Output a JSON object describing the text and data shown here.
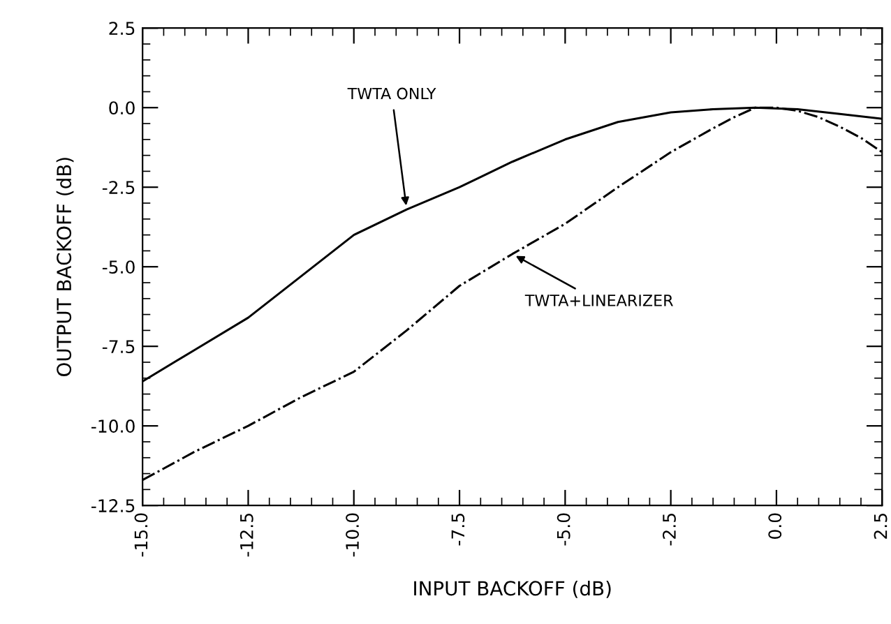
{
  "chart_data": {
    "type": "line",
    "xlabel": "INPUT BACKOFF (dB)",
    "ylabel": "OUTPUT BACKOFF (dB)",
    "xlim": [
      -15,
      2.5
    ],
    "ylim": [
      -12.5,
      2.5
    ],
    "xticks": [
      {
        "value": -15,
        "label": "-15.0"
      },
      {
        "value": -12.5,
        "label": "-12.5"
      },
      {
        "value": -10,
        "label": "-10.0"
      },
      {
        "value": -7.5,
        "label": "-7.5"
      },
      {
        "value": -5,
        "label": "-5.0"
      },
      {
        "value": -2.5,
        "label": "-2.5"
      },
      {
        "value": 0,
        "label": "0.0"
      },
      {
        "value": 2.5,
        "label": "2.5"
      }
    ],
    "yticks": [
      {
        "value": 2.5,
        "label": "2.5"
      },
      {
        "value": 0,
        "label": "0.0"
      },
      {
        "value": -2.5,
        "label": "-2.5"
      },
      {
        "value": -5,
        "label": "-5.0"
      },
      {
        "value": -7.5,
        "label": "-7.5"
      },
      {
        "value": -10,
        "label": "-10.0"
      },
      {
        "value": -12.5,
        "label": "-12.5"
      }
    ],
    "grid": false,
    "legend": false,
    "series": [
      {
        "color": "#000000",
        "line_style": "solid",
        "x": [
          -15,
          -13.75,
          -12.5,
          -11.25,
          -10,
          -8.75,
          -7.5,
          -6.25,
          -5,
          -3.75,
          -2.5,
          -1.5,
          -0.5,
          0.5,
          1.5,
          2.5
        ],
        "values": [
          -8.6,
          -7.6,
          -6.6,
          -5.3,
          -4.0,
          -3.2,
          -2.5,
          -1.7,
          -1.0,
          -0.45,
          -0.15,
          -0.05,
          0.0,
          -0.05,
          -0.2,
          -0.35
        ]
      },
      {
        "color": "#000000",
        "line_style": "dashdot",
        "x": [
          -15,
          -13.75,
          -12.5,
          -11.25,
          -10,
          -8.75,
          -7.5,
          -6.25,
          -5,
          -3.75,
          -2.5,
          -1.5,
          -1,
          -0.5,
          0,
          0.5,
          1,
          1.5,
          2,
          2.5
        ],
        "values": [
          -11.7,
          -10.8,
          -10.0,
          -9.1,
          -8.3,
          -7.0,
          -5.6,
          -4.6,
          -3.65,
          -2.5,
          -1.4,
          -0.65,
          -0.3,
          0.0,
          0.0,
          -0.1,
          -0.3,
          -0.6,
          -0.95,
          -1.4
        ]
      }
    ],
    "annotations": [
      {
        "text": "TWTA ONLY",
        "x": -8.75,
        "y": -3.2
      },
      {
        "text": "TWTA+LINEARIZER",
        "x": -6.25,
        "y": -4.6
      }
    ]
  }
}
